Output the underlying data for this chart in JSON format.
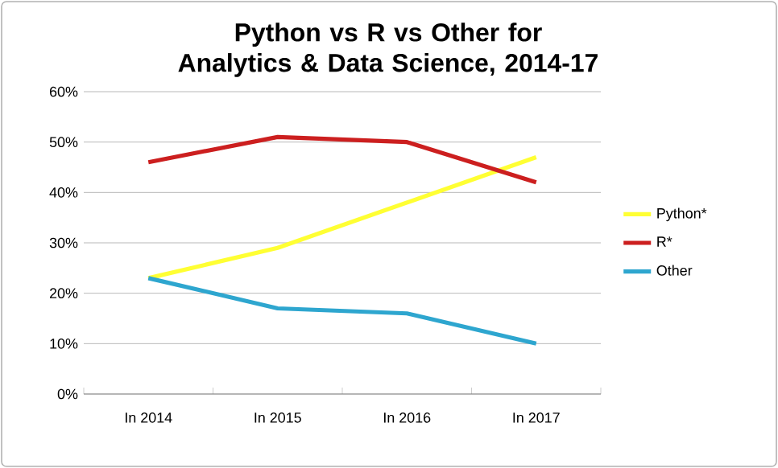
{
  "chart_data": {
    "type": "line",
    "title": "Python vs R vs Other for Analytics & Data Science, 2014-17",
    "categories": [
      "In 2014",
      "In 2015",
      "In 2016",
      "In 2017"
    ],
    "series": [
      {
        "name": "Python*",
        "color": "#ffff33",
        "values": [
          23,
          29,
          38,
          47
        ]
      },
      {
        "name": "R*",
        "color": "#cc1f1f",
        "values": [
          46,
          51,
          50,
          42
        ]
      },
      {
        "name": "Other",
        "color": "#2ea6cf",
        "values": [
          23,
          17,
          16,
          10
        ]
      }
    ],
    "ylim": [
      0,
      60
    ],
    "yticks": [
      {
        "value": 0,
        "label": "0%"
      },
      {
        "value": 10,
        "label": "10%"
      },
      {
        "value": 20,
        "label": "20%"
      },
      {
        "value": 30,
        "label": "30%"
      },
      {
        "value": 40,
        "label": "40%"
      },
      {
        "value": 50,
        "label": "50%"
      },
      {
        "value": 60,
        "label": "60%"
      }
    ],
    "grid": "y",
    "legend": "right",
    "marker": "none",
    "line_style": "solid"
  }
}
